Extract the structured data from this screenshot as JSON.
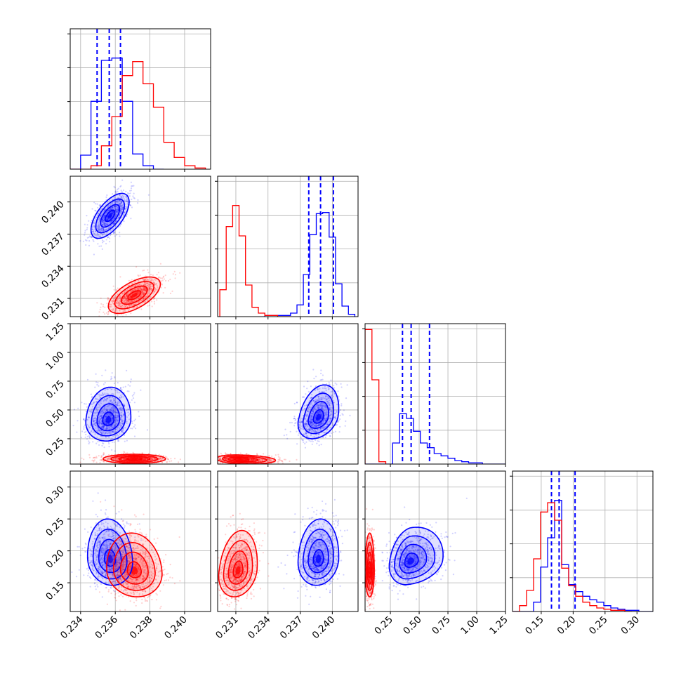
{
  "chart_data": {
    "type": "corner",
    "title": "",
    "grid": true,
    "parameters": [
      {
        "ticks": [
          0.234,
          0.236,
          0.238,
          0.24
        ],
        "tick_labels": [
          "0.234",
          "0.236",
          "0.238",
          "0.240"
        ],
        "range": [
          0.2334,
          0.2415
        ]
      },
      {
        "ticks": [
          0.231,
          0.234,
          0.237,
          0.24
        ],
        "tick_labels": [
          "0.231",
          "0.234",
          "0.237",
          "0.240"
        ],
        "range": [
          0.2293,
          0.2424
        ]
      },
      {
        "ticks": [
          0.25,
          0.5,
          0.75,
          1.0,
          1.25
        ],
        "tick_labels": [
          "0.25",
          "0.50",
          "0.75",
          "1.00",
          "1.25"
        ],
        "range": [
          0.03,
          1.25
        ]
      },
      {
        "ticks": [
          0.15,
          0.2,
          0.25,
          0.3
        ],
        "tick_labels": [
          "0.15",
          "0.20",
          "0.25",
          "0.30"
        ],
        "range": [
          0.105,
          0.325
        ]
      }
    ],
    "series": [
      {
        "color": "#0000ff",
        "quantiles": [
          [
            0.23495,
            0.23565,
            0.2363
          ],
          [
            0.2378,
            0.2389,
            0.2401
          ],
          [
            0.355,
            0.43,
            0.59
          ],
          [
            0.166,
            0.178,
            0.203
          ]
        ],
        "hist_edges": [
          [
            0.2334,
            0.234,
            0.2346,
            0.2352,
            0.2358,
            0.2364,
            0.237,
            0.2376,
            0.2382,
            0.2388
          ],
          [
            0.2337,
            0.2343,
            0.2349,
            0.2355,
            0.2361,
            0.2367,
            0.2373,
            0.2379,
            0.2385,
            0.2391,
            0.2397,
            0.2403,
            0.2409,
            0.2415,
            0.2421
          ],
          [
            0.03,
            0.09,
            0.15,
            0.21,
            0.27,
            0.33,
            0.39,
            0.45,
            0.51,
            0.57,
            0.63,
            0.69,
            0.75,
            0.81,
            0.87,
            0.93,
            0.99,
            1.05,
            1.11,
            1.17,
            1.25
          ],
          [
            0.105,
            0.116,
            0.127,
            0.138,
            0.149,
            0.16,
            0.171,
            0.182,
            0.193,
            0.204,
            0.215,
            0.226,
            0.237,
            0.248,
            0.259,
            0.27,
            0.281,
            0.292,
            0.303,
            0.314,
            0.325
          ]
        ],
        "hist_counts": [
          [
            0,
            0.12,
            0.58,
            0.93,
            0.95,
            0.58,
            0.13,
            0.03,
            0
          ],
          [
            0.01,
            0.01,
            0.01,
            0.01,
            0.03,
            0.1,
            0.36,
            0.7,
            0.88,
            0.89,
            0.68,
            0.28,
            0.09,
            0.02
          ],
          [
            0,
            0,
            0,
            0,
            0.18,
            0.43,
            0.39,
            0.28,
            0.18,
            0.14,
            0.09,
            0.07,
            0.05,
            0.03,
            0.02,
            0.01,
            0.01,
            0,
            0,
            0
          ],
          [
            0,
            0,
            0,
            0.08,
            0.38,
            0.63,
            0.95,
            0.4,
            0.23,
            0.17,
            0.13,
            0.1,
            0.08,
            0.05,
            0.03,
            0.02,
            0.01,
            0.01,
            0,
            0
          ]
        ],
        "pairs": [
          {
            "x": 0,
            "y": 1,
            "mean": [
              0.2357,
              0.2387
            ],
            "std": [
              0.00055,
              0.00105
            ],
            "rho": 0.62,
            "skew": [
              0,
              0
            ]
          },
          {
            "x": 0,
            "y": 2,
            "mean": [
              0.2356,
              0.41
            ],
            "std": [
              0.00065,
              0.09
            ],
            "rho": 0.1,
            "skew": [
              0,
              0.6
            ]
          },
          {
            "x": 1,
            "y": 2,
            "mean": [
              0.2387,
              0.43
            ],
            "std": [
              0.00095,
              0.09
            ],
            "rho": 0.3,
            "skew": [
              0,
              0.6
            ]
          },
          {
            "x": 0,
            "y": 3,
            "mean": [
              0.2357,
              0.186
            ],
            "std": [
              0.00065,
              0.02
            ],
            "rho": -0.1,
            "skew": [
              0,
              0.6
            ]
          },
          {
            "x": 1,
            "y": 3,
            "mean": [
              0.2387,
              0.186
            ],
            "std": [
              0.00095,
              0.02
            ],
            "rho": 0.1,
            "skew": [
              0,
              0.6
            ]
          },
          {
            "x": 2,
            "y": 3,
            "mean": [
              0.42,
              0.183
            ],
            "std": [
              0.09,
              0.018
            ],
            "rho": 0.2,
            "skew": [
              0.6,
              0.5
            ]
          }
        ]
      },
      {
        "color": "#ff0000",
        "quantiles": null,
        "hist_edges": [
          [
            0.2334,
            0.234,
            0.2346,
            0.2352,
            0.2358,
            0.2364,
            0.237,
            0.2376,
            0.2382,
            0.2388,
            0.2394,
            0.24,
            0.2406,
            0.2412
          ],
          [
            0.2295,
            0.2301,
            0.2307,
            0.2313,
            0.2319,
            0.2325,
            0.2331,
            0.2337,
            0.2343,
            0.2349,
            0.2355,
            0.2361
          ],
          [
            0.03,
            0.09,
            0.15,
            0.21
          ],
          [
            0.105,
            0.116,
            0.127,
            0.138,
            0.149,
            0.16,
            0.171,
            0.182,
            0.193,
            0.204,
            0.215,
            0.226,
            0.237,
            0.248,
            0.259,
            0.27,
            0.281,
            0.292
          ]
        ],
        "hist_counts": [
          [
            0,
            0,
            0.03,
            0.2,
            0.45,
            0.8,
            0.92,
            0.73,
            0.53,
            0.23,
            0.1,
            0.03,
            0.01
          ],
          [
            0.23,
            0.77,
            0.95,
            0.69,
            0.27,
            0.08,
            0.03,
            0.01,
            0.01,
            0,
            0
          ],
          [
            1.15,
            0.72,
            0.02
          ],
          [
            0,
            0.05,
            0.18,
            0.45,
            0.85,
            0.93,
            0.78,
            0.37,
            0.22,
            0.13,
            0.08,
            0.05,
            0.03,
            0.02,
            0.01,
            0.01,
            0
          ]
        ],
        "pairs": [
          {
            "x": 0,
            "y": 1,
            "mean": [
              0.2371,
              0.2313
            ],
            "std": [
              0.00075,
              0.00085
            ],
            "rho": 0.6,
            "skew": [
              0,
              0
            ]
          },
          {
            "x": 0,
            "y": 2,
            "mean": [
              0.2371,
              0.075
            ],
            "std": [
              0.0009,
              0.02
            ],
            "rho": 0,
            "skew": [
              0,
              0
            ]
          },
          {
            "x": 1,
            "y": 2,
            "mean": [
              0.2314,
              0.07
            ],
            "std": [
              0.0011,
              0.02
            ],
            "rho": -0.2,
            "skew": [
              0.5,
              0
            ]
          },
          {
            "x": 0,
            "y": 3,
            "mean": [
              0.2371,
              0.168
            ],
            "std": [
              0.0008,
              0.02
            ],
            "rho": -0.1,
            "skew": [
              0,
              0.5
            ]
          },
          {
            "x": 1,
            "y": 3,
            "mean": [
              0.2312,
              0.168
            ],
            "std": [
              0.0009,
              0.02
            ],
            "rho": 0.2,
            "skew": [
              0,
              0.6
            ]
          },
          {
            "x": 2,
            "y": 3,
            "mean": [
              0.07,
              0.168
            ],
            "std": [
              0.02,
              0.02
            ],
            "rho": 0,
            "skew": [
              0,
              0.5
            ]
          }
        ]
      }
    ]
  }
}
